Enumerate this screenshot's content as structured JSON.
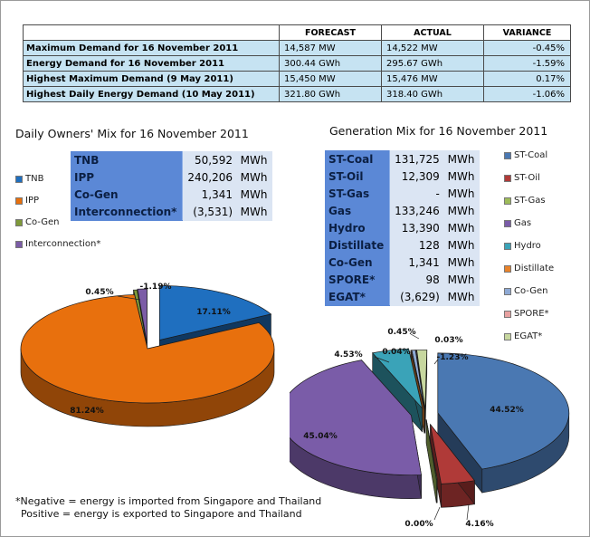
{
  "summary": {
    "headers": [
      "FORECAST",
      "ACTUAL",
      "VARIANCE"
    ],
    "rows": [
      {
        "label": "Maximum Demand for 16 November 2011",
        "forecast": "14,587  MW",
        "actual": "14,522  MW",
        "variance": "-0.45%"
      },
      {
        "label": "Energy Demand for 16 November 2011",
        "forecast": "300.44  GWh",
        "actual": "295.67  GWh",
        "variance": "-1.59%"
      },
      {
        "label": "Highest Maximum Demand (9 May 2011)",
        "forecast": "15,450  MW",
        "actual": "15,476  MW",
        "variance": "0.17%"
      },
      {
        "label": "Highest Daily Energy Demand (10 May 2011)",
        "forecast": "321.80  GWh",
        "actual": "318.40  GWh",
        "variance": "-1.06%"
      }
    ]
  },
  "owners_mix": {
    "title": "Daily Owners' Mix for 16 November 2011",
    "rows": [
      {
        "name": "TNB",
        "value": "50,592",
        "unit": "MWh"
      },
      {
        "name": "IPP",
        "value": "240,206",
        "unit": "MWh"
      },
      {
        "name": "Co-Gen",
        "value": "1,341",
        "unit": "MWh"
      },
      {
        "name": "Interconnection*",
        "value": "(3,531)",
        "unit": "MWh"
      }
    ],
    "colors": {
      "TNB": "#1f6fbf",
      "IPP": "#e8700d",
      "Co-Gen": "#7f9a3a",
      "Interconnection*": "#7b5ca6"
    }
  },
  "generation_mix": {
    "title": "Generation Mix for 16 November 2011",
    "rows": [
      {
        "name": "ST-Coal",
        "value": "131,725",
        "unit": "MWh"
      },
      {
        "name": "ST-Oil",
        "value": "12,309",
        "unit": "MWh"
      },
      {
        "name": "ST-Gas",
        "value": "-",
        "unit": "MWh"
      },
      {
        "name": "Gas",
        "value": "133,246",
        "unit": "MWh"
      },
      {
        "name": "Hydro",
        "value": "13,390",
        "unit": "MWh"
      },
      {
        "name": "Distillate",
        "value": "128",
        "unit": "MWh"
      },
      {
        "name": "Co-Gen",
        "value": "1,341",
        "unit": "MWh"
      },
      {
        "name": "SPORE*",
        "value": "98",
        "unit": "MWh"
      },
      {
        "name": "EGAT*",
        "value": "(3,629)",
        "unit": "MWh"
      }
    ],
    "colors": {
      "ST-Coal": "#4a78b2",
      "ST-Oil": "#b03a38",
      "ST-Gas": "#9dbb59",
      "Gas": "#7a5ca8",
      "Hydro": "#3aa3b8",
      "Distillate": "#e8832b",
      "Co-Gen": "#8ea9d4",
      "SPORE*": "#e7a1a0",
      "EGAT*": "#c7d79f"
    }
  },
  "chart_data": [
    {
      "type": "pie",
      "title": "Daily Owners' Mix for 16 November 2011",
      "categories": [
        "TNB",
        "IPP",
        "Co-Gen",
        "Interconnection*"
      ],
      "values": [
        17.11,
        81.24,
        0.45,
        -1.19
      ],
      "labels": [
        "17.11%",
        "81.24%",
        "0.45%",
        "-1.19%"
      ],
      "legend": "left"
    },
    {
      "type": "pie",
      "title": "Generation Mix for 16 November 2011",
      "categories": [
        "ST-Coal",
        "ST-Oil",
        "ST-Gas",
        "Gas",
        "Hydro",
        "Distillate",
        "Co-Gen",
        "SPORE*",
        "EGAT*"
      ],
      "values": [
        44.52,
        4.16,
        0.0,
        45.04,
        4.53,
        0.04,
        0.45,
        0.03,
        -1.23
      ],
      "labels": [
        "44.52%",
        "4.16%",
        "0.00%",
        "45.04%",
        "4.53%",
        "0.04%",
        "0.45%",
        "0.03%",
        "-1.23%"
      ],
      "legend": "right"
    }
  ],
  "footnote": {
    "line1": "*Negative = energy is imported from Singapore and Thailand",
    "line2": "Positive = energy is exported to Singapore and Thailand"
  }
}
